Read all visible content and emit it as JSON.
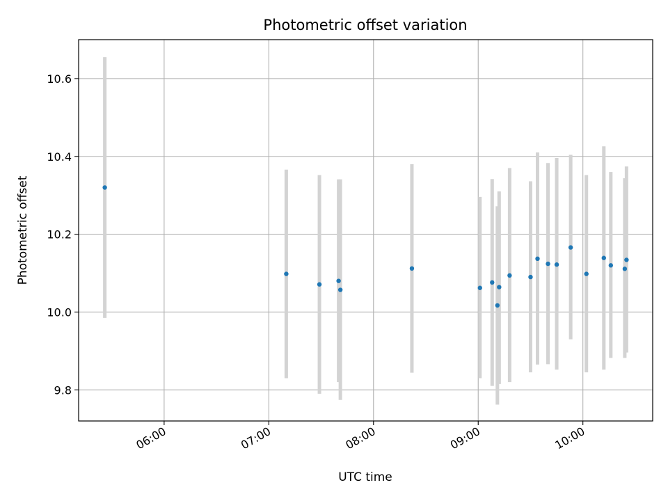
{
  "chart_data": {
    "type": "scatter",
    "title": "Photometric offset variation",
    "xlabel": "UTC time",
    "ylabel": "Photometric offset",
    "x_type": "time",
    "xlim": [
      "05:11",
      "10:40"
    ],
    "ylim": [
      9.72,
      10.7
    ],
    "x_ticks": [
      "06:00",
      "07:00",
      "08:00",
      "09:00",
      "10:00"
    ],
    "y_ticks": [
      9.8,
      10.0,
      10.2,
      10.4,
      10.6
    ],
    "grid": true,
    "colors": {
      "point": "#1f77b4",
      "errorbar": "#d3d3d3",
      "grid": "#b0b0b0"
    },
    "points": [
      {
        "x": "05:26",
        "y": 10.32,
        "ylow": 9.985,
        "yhigh": 10.655
      },
      {
        "x": "07:10",
        "y": 10.098,
        "ylow": 9.83,
        "yhigh": 10.366
      },
      {
        "x": "07:29",
        "y": 10.071,
        "ylow": 9.79,
        "yhigh": 10.352
      },
      {
        "x": "07:40",
        "y": 10.08,
        "ylow": 9.82,
        "yhigh": 10.341
      },
      {
        "x": "07:41",
        "y": 10.057,
        "ylow": 9.774,
        "yhigh": 10.341
      },
      {
        "x": "08:22",
        "y": 10.112,
        "ylow": 9.844,
        "yhigh": 10.38
      },
      {
        "x": "09:01",
        "y": 10.062,
        "ylow": 9.83,
        "yhigh": 10.296
      },
      {
        "x": "09:08",
        "y": 10.076,
        "ylow": 9.81,
        "yhigh": 10.342
      },
      {
        "x": "09:11",
        "y": 10.017,
        "ylow": 9.762,
        "yhigh": 10.272
      },
      {
        "x": "09:12",
        "y": 10.064,
        "ylow": 9.815,
        "yhigh": 10.31
      },
      {
        "x": "09:18",
        "y": 10.094,
        "ylow": 9.82,
        "yhigh": 10.37
      },
      {
        "x": "09:30",
        "y": 10.09,
        "ylow": 9.845,
        "yhigh": 10.336
      },
      {
        "x": "09:34",
        "y": 10.137,
        "ylow": 9.865,
        "yhigh": 10.41
      },
      {
        "x": "09:40",
        "y": 10.124,
        "ylow": 9.866,
        "yhigh": 10.383
      },
      {
        "x": "09:45",
        "y": 10.122,
        "ylow": 9.852,
        "yhigh": 10.396
      },
      {
        "x": "09:53",
        "y": 10.166,
        "ylow": 9.93,
        "yhigh": 10.404
      },
      {
        "x": "10:02",
        "y": 10.098,
        "ylow": 9.845,
        "yhigh": 10.352
      },
      {
        "x": "10:12",
        "y": 10.139,
        "ylow": 9.852,
        "yhigh": 10.426
      },
      {
        "x": "10:16",
        "y": 10.12,
        "ylow": 9.882,
        "yhigh": 10.36
      },
      {
        "x": "10:24",
        "y": 10.111,
        "ylow": 9.882,
        "yhigh": 10.344
      },
      {
        "x": "10:25",
        "y": 10.134,
        "ylow": 9.896,
        "yhigh": 10.374
      }
    ]
  }
}
